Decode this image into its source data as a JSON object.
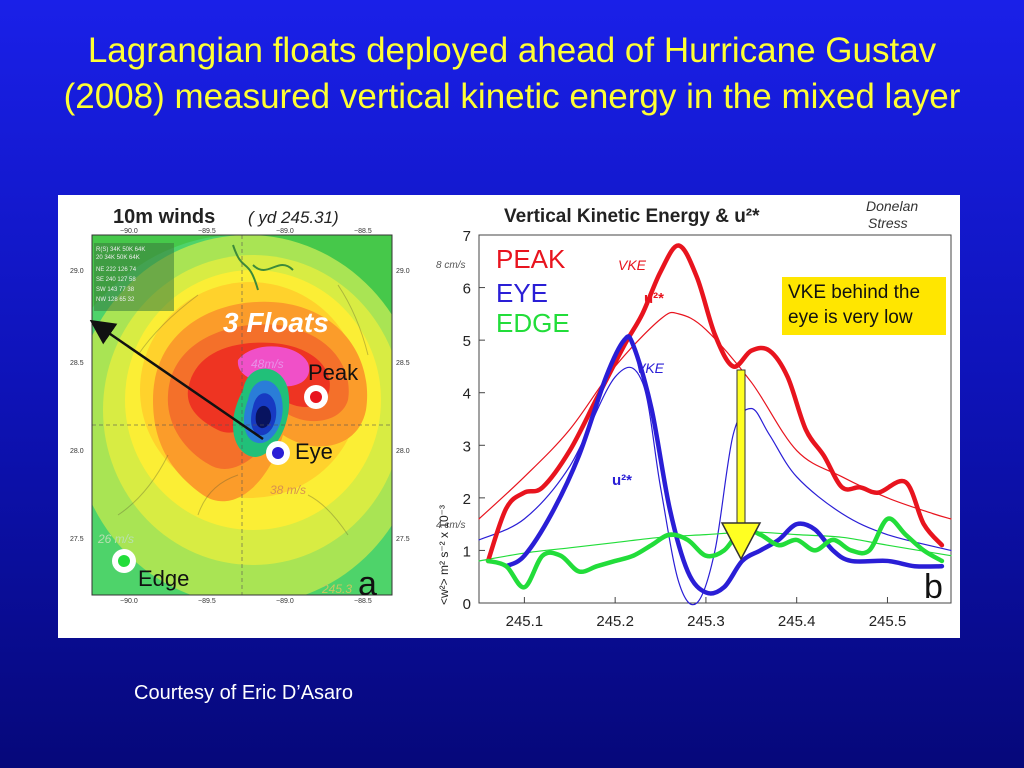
{
  "slide": {
    "title": "Lagrangian floats deployed ahead of Hurricane Gustav (2008) measured vertical kinetic energy in the mixed layer",
    "credit": "Courtesy of Eric D’Asaro"
  },
  "colors": {
    "background": "#0e13b8",
    "title": "#ffff33",
    "peak": "#e8141e",
    "eye": "#2a1ed6",
    "edge": "#22dd3a",
    "arrow": "#ffff22"
  },
  "map_panel": {
    "title": "10m winds",
    "subtitle": "( yd 245.31)",
    "panel_letter": "a",
    "floats_label": "3 Floats",
    "float_labels": [
      "Peak",
      "Eye",
      "Edge"
    ],
    "wind_labels": [
      "48m/s",
      "38 m/s",
      "26 m/s"
    ],
    "stamp": "245.3",
    "lon_ticks": [
      "−90.0",
      "−89.5",
      "−89.0",
      "−88.5"
    ],
    "lat_ticks": [
      "29.0",
      "28.5",
      "28.0",
      "27.5"
    ],
    "inset_table": [
      "R(S) 34K 50K 64K",
      "20 34K 50K 64K",
      "NE 222 126 74",
      "SE 240 127 58",
      "SW 143 77 38",
      "NW 128 65 32"
    ]
  },
  "chart_data": {
    "type": "line",
    "title": "Vertical Kinetic Energy & u²*",
    "corner_note": [
      "Donelan",
      "Stress"
    ],
    "panel_letter": "b",
    "ylabel": "<w²>  m² s⁻²  x 10⁻³",
    "side_labels": [
      "8 cm/s",
      "4 cm/s"
    ],
    "xlim": [
      245.05,
      245.57
    ],
    "ylim": [
      0,
      7
    ],
    "x_ticks": [
      "245.1",
      "245.2",
      "245.3",
      "245.4",
      "245.5"
    ],
    "y_ticks": [
      "0",
      "1",
      "2",
      "3",
      "4",
      "5",
      "6",
      "7"
    ],
    "legend": [
      "PEAK",
      "EYE",
      "EDGE"
    ],
    "annotations": {
      "vke_peak": "VKE",
      "vke_eye": "VKE",
      "u2_peak": "u²*",
      "u2_eye": "u²*",
      "box": "VKE behind the eye is very low"
    },
    "series": [
      {
        "name": "PEAK",
        "kind": "VKE",
        "x": [
          245.06,
          245.08,
          245.1,
          245.12,
          245.15,
          245.18,
          245.21,
          245.23,
          245.25,
          245.27,
          245.29,
          245.31,
          245.33,
          245.35,
          245.37,
          245.39,
          245.41,
          245.43,
          245.45,
          245.47,
          245.49,
          245.52,
          245.54,
          245.56
        ],
        "y": [
          0.8,
          1.8,
          2.1,
          2.2,
          2.9,
          3.9,
          4.9,
          5.5,
          6.3,
          6.8,
          6.2,
          5.1,
          4.5,
          4.8,
          4.8,
          4.3,
          3.3,
          2.8,
          2.2,
          2.2,
          2.1,
          2.3,
          1.5,
          1.1
        ]
      },
      {
        "name": "PEAK",
        "kind": "u*2",
        "x": [
          245.05,
          245.1,
          245.15,
          245.2,
          245.25,
          245.27,
          245.3,
          245.35,
          245.4,
          245.45,
          245.5,
          245.55,
          245.57
        ],
        "y": [
          1.6,
          2.4,
          3.3,
          4.5,
          5.4,
          5.5,
          5.2,
          4.2,
          2.9,
          2.4,
          2.0,
          1.7,
          1.6
        ]
      },
      {
        "name": "EYE",
        "kind": "VKE",
        "x": [
          245.08,
          245.1,
          245.13,
          245.16,
          245.19,
          245.21,
          245.22,
          245.24,
          245.26,
          245.28,
          245.3,
          245.32,
          245.34,
          245.36,
          245.38,
          245.4,
          245.42,
          245.44,
          245.46,
          245.5,
          245.53,
          245.56
        ],
        "y": [
          0.7,
          0.9,
          1.7,
          2.8,
          4.3,
          5.0,
          4.9,
          3.7,
          1.8,
          0.6,
          0.2,
          0.3,
          0.8,
          1.0,
          1.2,
          1.5,
          1.4,
          1.0,
          0.8,
          0.8,
          0.7,
          0.7
        ]
      },
      {
        "name": "EYE",
        "kind": "u*2",
        "x": [
          245.05,
          245.1,
          245.15,
          245.2,
          245.23,
          245.25,
          245.27,
          245.29,
          245.31,
          245.33,
          245.35,
          245.37,
          245.4,
          245.45,
          245.5,
          245.57
        ],
        "y": [
          1.2,
          1.6,
          2.6,
          4.3,
          4.2,
          2.2,
          0.4,
          0.0,
          1.0,
          3.2,
          3.7,
          3.2,
          2.4,
          1.7,
          1.3,
          1.0
        ]
      },
      {
        "name": "EDGE",
        "kind": "VKE",
        "x": [
          245.06,
          245.08,
          245.1,
          245.12,
          245.14,
          245.16,
          245.18,
          245.2,
          245.22,
          245.24,
          245.26,
          245.28,
          245.3,
          245.32,
          245.34,
          245.36,
          245.38,
          245.4,
          245.42,
          245.44,
          245.46,
          245.48,
          245.5,
          245.52,
          245.54,
          245.56
        ],
        "y": [
          0.8,
          0.7,
          0.3,
          0.9,
          0.9,
          0.6,
          0.7,
          0.8,
          0.9,
          1.1,
          1.3,
          1.2,
          0.9,
          1.0,
          1.4,
          1.3,
          1.1,
          1.2,
          1.0,
          1.2,
          1.0,
          1.0,
          1.6,
          1.3,
          1.0,
          0.8
        ]
      },
      {
        "name": "EDGE",
        "kind": "u*2",
        "x": [
          245.05,
          245.1,
          245.15,
          245.2,
          245.25,
          245.3,
          245.35,
          245.4,
          245.45,
          245.5,
          245.57
        ],
        "y": [
          0.8,
          0.95,
          1.05,
          1.15,
          1.25,
          1.3,
          1.35,
          1.3,
          1.25,
          1.1,
          0.9
        ]
      }
    ]
  }
}
